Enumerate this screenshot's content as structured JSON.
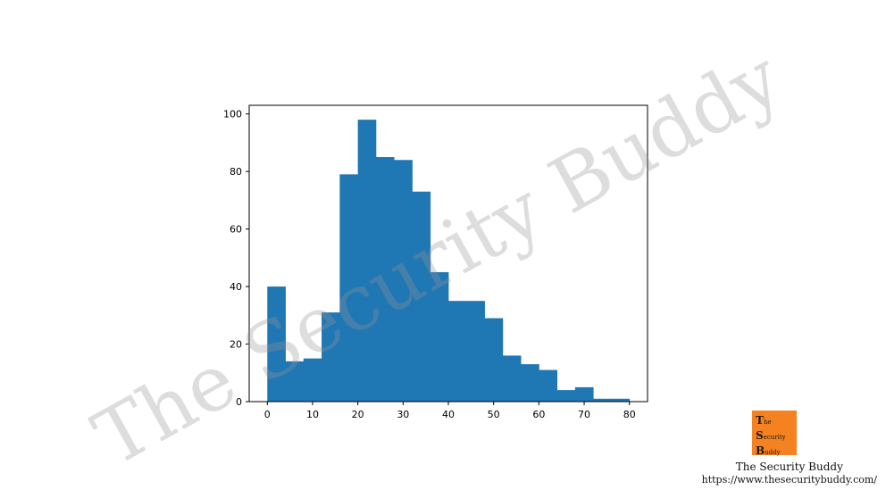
{
  "chart_data": {
    "type": "bar",
    "subtype": "histogram",
    "bin_edges": [
      0,
      4,
      8,
      12,
      16,
      20,
      24,
      28,
      32,
      36,
      40,
      44,
      48,
      52,
      56,
      60,
      64,
      68,
      72,
      76,
      80
    ],
    "values": [
      40,
      14,
      15,
      31,
      79,
      98,
      85,
      84,
      73,
      45,
      35,
      35,
      29,
      16,
      13,
      11,
      4,
      5,
      1,
      1
    ],
    "xticks": [
      0,
      10,
      20,
      30,
      40,
      50,
      60,
      70,
      80
    ],
    "yticks": [
      0,
      20,
      40,
      60,
      80,
      100
    ],
    "xlim": [
      -4,
      84
    ],
    "ylim": [
      0,
      103
    ],
    "bar_color": "#1f77b4",
    "grid": false,
    "title": "",
    "xlabel": "",
    "ylabel": ""
  },
  "watermark": {
    "text": "The Security Buddy"
  },
  "branding": {
    "logo_letters": [
      "T",
      "S",
      "B"
    ],
    "logo_words": [
      "he",
      "ecurity",
      "uddy"
    ],
    "logo_color": "#f58220",
    "name": "The Security Buddy",
    "url": "https://www.thesecuritybuddy.com/"
  }
}
